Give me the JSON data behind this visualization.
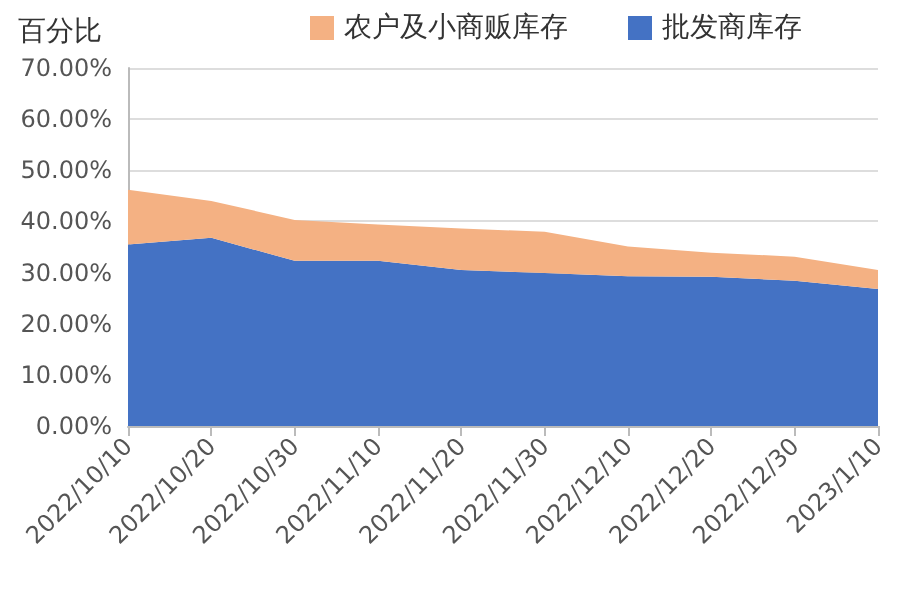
{
  "chart_data": {
    "type": "area",
    "stacked": true,
    "ylabel": "百分比",
    "categories": [
      "2022/10/10",
      "2022/10/20",
      "2022/10/30",
      "2022/11/10",
      "2022/11/20",
      "2022/11/30",
      "2022/12/10",
      "2022/12/20",
      "2022/12/30",
      "2023/1/10"
    ],
    "series": [
      {
        "name": "批发商库存",
        "color": "#4472c4",
        "values": [
          35.5,
          36.8,
          32.3,
          32.3,
          30.5,
          29.9,
          29.3,
          29.2,
          28.4,
          26.8
        ]
      },
      {
        "name": "农户及小商贩库存",
        "color": "#f4b183",
        "values": [
          10.7,
          7.2,
          8.0,
          7.1,
          8.1,
          8.1,
          5.8,
          4.7,
          4.7,
          3.7
        ]
      }
    ],
    "ylim": [
      0,
      70
    ],
    "yticks": [
      {
        "value": 0,
        "label": "0.00%"
      },
      {
        "value": 10,
        "label": "10.00%"
      },
      {
        "value": 20,
        "label": "20.00%"
      },
      {
        "value": 30,
        "label": "30.00%"
      },
      {
        "value": 40,
        "label": "40.00%"
      },
      {
        "value": 50,
        "label": "50.00%"
      },
      {
        "value": 60,
        "label": "60.00%"
      },
      {
        "value": 70,
        "label": "70.00%"
      }
    ],
    "grid": "y",
    "legend": "top"
  }
}
